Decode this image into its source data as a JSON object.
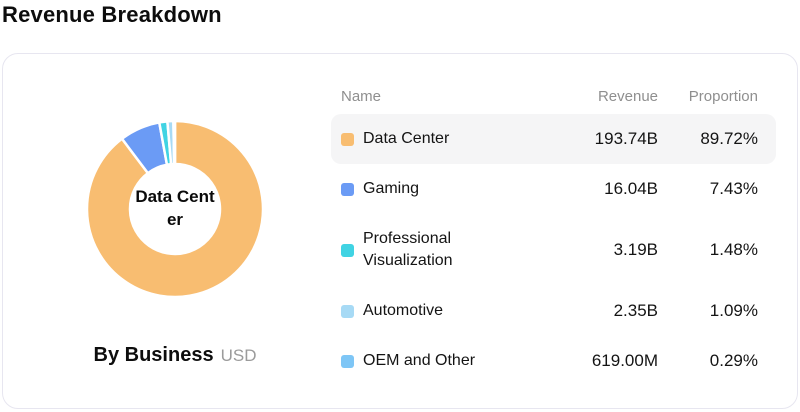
{
  "page": {
    "title": "Revenue Breakdown"
  },
  "chart": {
    "center_label": "Data Center",
    "caption": {
      "label": "By Business",
      "unit": "USD"
    }
  },
  "table": {
    "headers": {
      "name": "Name",
      "revenue": "Revenue",
      "proportion": "Proportion"
    },
    "rows": [
      {
        "name": "Data Center",
        "revenue": "193.74B",
        "proportion": "89.72%",
        "color": "#F8BD71",
        "highlighted": true
      },
      {
        "name": "Gaming",
        "revenue": "16.04B",
        "proportion": "7.43%",
        "color": "#6B9BF5",
        "highlighted": false
      },
      {
        "name": "Professional Visualization",
        "revenue": "3.19B",
        "proportion": "1.48%",
        "color": "#40D3E3",
        "highlighted": false
      },
      {
        "name": "Automotive",
        "revenue": "2.35B",
        "proportion": "1.09%",
        "color": "#A7DAF5",
        "highlighted": false
      },
      {
        "name": "OEM and Other",
        "revenue": "619.00M",
        "proportion": "0.29%",
        "color": "#7EC6F6",
        "highlighted": false
      }
    ]
  },
  "chart_data": {
    "type": "pie",
    "donut": true,
    "title": "Revenue Breakdown",
    "subtitle": "By Business (USD)",
    "center_label": "Data Center",
    "categories": [
      "Data Center",
      "Gaming",
      "Professional Visualization",
      "Automotive",
      "OEM and Other"
    ],
    "values_pct": [
      89.72,
      7.43,
      1.48,
      1.09,
      0.29
    ],
    "values_revenue": [
      "193.74B",
      "16.04B",
      "3.19B",
      "2.35B",
      "619.00M"
    ],
    "colors": [
      "#F8BD71",
      "#6B9BF5",
      "#40D3E3",
      "#A7DAF5",
      "#7EC6F6"
    ],
    "start_angle_deg": -90,
    "direction": "clockwise",
    "inner_radius": 45,
    "outer_radius": 88,
    "segment_border_color": "#ffffff",
    "legend_position": "right-table"
  }
}
